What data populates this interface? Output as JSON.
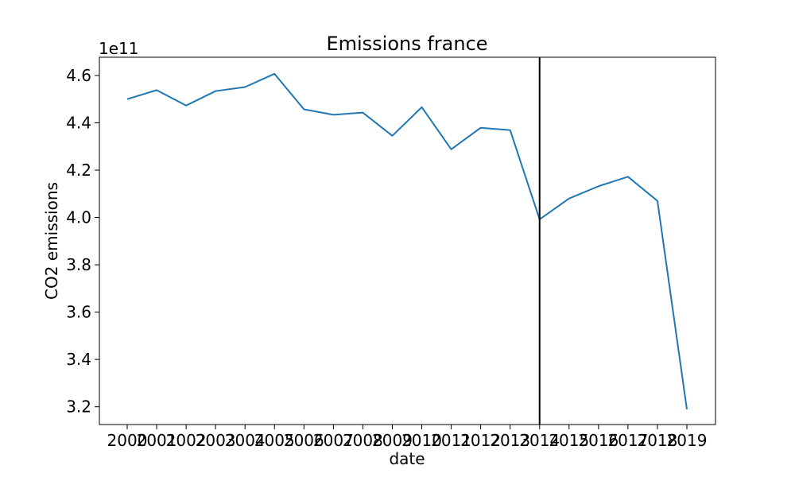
{
  "chart_data": {
    "type": "line",
    "title": "Emissions france",
    "xlabel": "date",
    "ylabel": "CO2 emissions",
    "y_scale_label": "1e11",
    "categories": [
      "2000",
      "2001",
      "2002",
      "2003",
      "2004",
      "2005",
      "2006",
      "2007",
      "2008",
      "2009",
      "2010",
      "2011",
      "2012",
      "2013",
      "2014",
      "2015",
      "2016",
      "2017",
      "2018",
      "2019"
    ],
    "series": [
      {
        "values": [
          450000000000.0,
          453800000000.0,
          447300000000.0,
          453400000000.0,
          455100000000.0,
          460700000000.0,
          445700000000.0,
          443400000000.0,
          444300000000.0,
          434500000000.0,
          446600000000.0,
          428800000000.0,
          437900000000.0,
          436900000000.0,
          399200000000.0,
          408000000000.0,
          413200000000.0,
          417200000000.0,
          407000000000.0,
          318900000000.0
        ],
        "color": "#1f77b4"
      }
    ],
    "y_ticks": [
      3.2,
      3.4,
      3.6,
      3.8,
      4.0,
      4.2,
      4.4,
      4.6
    ],
    "ylim": [
      312500000000.0,
      467700000000.0
    ],
    "vertical_line_at": "2014",
    "vertical_line_color": "#000000",
    "grid": false,
    "legend": "none"
  }
}
